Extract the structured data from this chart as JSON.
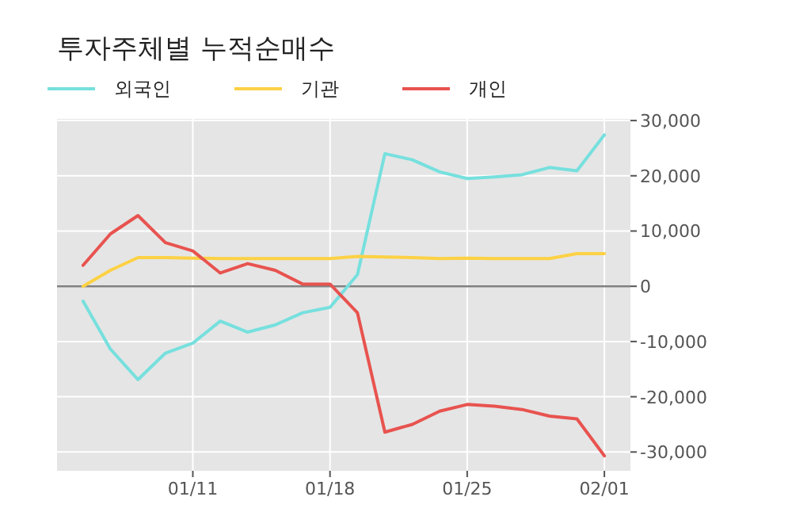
{
  "chart_data": {
    "type": "line",
    "title": "투자주체별 누적순매수",
    "categories": [
      null,
      null,
      null,
      null,
      "01/11",
      null,
      null,
      null,
      null,
      "01/18",
      null,
      null,
      null,
      null,
      "01/25",
      null,
      null,
      null,
      null,
      "02/01"
    ],
    "series": [
      {
        "name": "외국인",
        "color": "#76e0de",
        "values": [
          -2700,
          -11400,
          -16900,
          -12100,
          -10300,
          -6300,
          -8300,
          -7000,
          -4800,
          -3800,
          2100,
          24000,
          22900,
          20700,
          19500,
          19800,
          20200,
          21500,
          20900,
          27400
        ]
      },
      {
        "name": "기관",
        "color": "#fcd144",
        "values": [
          0,
          2900,
          5200,
          5200,
          5100,
          5000,
          5000,
          5000,
          5000,
          5000,
          5400,
          5300,
          5200,
          5000,
          5100,
          5000,
          5000,
          5000,
          5900,
          5900
        ]
      },
      {
        "name": "개인",
        "color": "#e8534f",
        "values": [
          3800,
          9500,
          12800,
          7900,
          6400,
          2400,
          4100,
          2900,
          400,
          400,
          -4800,
          -26400,
          -25000,
          -22600,
          -21400,
          -21700,
          -22300,
          -23500,
          -24000,
          -30700
        ]
      }
    ],
    "ylim": [
      -33400,
      30300
    ],
    "yticks": [
      {
        "value": -30000,
        "label": "-30,000"
      },
      {
        "value": -20000,
        "label": "-20,000"
      },
      {
        "value": -10000,
        "label": "-10,000"
      },
      0,
      {
        "value": 10000,
        "label": "10,000"
      },
      {
        "value": 20000,
        "label": "20,000"
      },
      {
        "value": 30000,
        "label": "30,000"
      }
    ],
    "ref_lines": [
      {
        "axis": "y",
        "value": 0,
        "color": "#808080"
      }
    ],
    "grid": true,
    "legend": "top left",
    "marker": "none",
    "line_style": "solid"
  }
}
